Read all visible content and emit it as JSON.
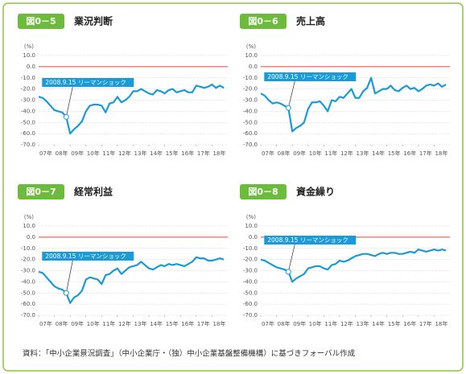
{
  "chart_data": [
    {
      "type": "line",
      "figure_label": "図0－5",
      "title": "業況判断",
      "y_unit": "(%)",
      "annotation": "2008.9.15 リーマンショック",
      "x": [
        2007,
        2007.25,
        2007.5,
        2007.75,
        2008,
        2008.25,
        2008.5,
        2008.75,
        2009,
        2009.25,
        2009.5,
        2009.75,
        2010,
        2010.25,
        2010.5,
        2010.75,
        2011,
        2011.25,
        2011.5,
        2011.75,
        2012,
        2012.25,
        2012.5,
        2012.75,
        2013,
        2013.25,
        2013.5,
        2013.75,
        2014,
        2014.25,
        2014.5,
        2014.75,
        2015,
        2015.25,
        2015.5,
        2015.75,
        2016,
        2016.25,
        2016.5,
        2016.75,
        2017,
        2017.25,
        2017.5,
        2017.75,
        2018,
        2018.25,
        2018.5,
        2018.75
      ],
      "xlim": [
        2007,
        2019
      ],
      "xticks": [
        {
          "value": 2007,
          "label": "07年"
        },
        {
          "value": 2008,
          "label": "08年"
        },
        {
          "value": 2009,
          "label": "09年"
        },
        {
          "value": 2010,
          "label": "10年"
        },
        {
          "value": 2011,
          "label": "11年"
        },
        {
          "value": 2012,
          "label": "12年"
        },
        {
          "value": 2013,
          "label": "13年"
        },
        {
          "value": 2014,
          "label": "14年"
        },
        {
          "value": 2015,
          "label": "15年"
        },
        {
          "value": 2016,
          "label": "16年"
        },
        {
          "value": 2017,
          "label": "17年"
        },
        {
          "value": 2018,
          "label": "18年"
        }
      ],
      "ylim": [
        -70,
        10
      ],
      "yticks": [
        {
          "value": 10,
          "label": "10.0"
        },
        {
          "value": 0,
          "label": "0.0"
        },
        {
          "value": -10,
          "label": "-10.0"
        },
        {
          "value": -20,
          "label": "-20.0"
        },
        {
          "value": -30,
          "label": "-30.0"
        },
        {
          "value": -40,
          "label": "-40.0"
        },
        {
          "value": -50,
          "label": "-50.0"
        },
        {
          "value": -60,
          "label": "-60.0"
        },
        {
          "value": -70,
          "label": "-70.0"
        }
      ],
      "grid": true,
      "reference_line": {
        "value": 0,
        "color": "#e8473d"
      },
      "series": [
        {
          "color": "#1a9ad6",
          "values": [
            -27,
            -28,
            -31,
            -35,
            -39,
            -40,
            -41,
            -45,
            -60,
            -56,
            -53,
            -49,
            -40,
            -35,
            -34,
            -34,
            -35,
            -41,
            -33,
            -32,
            -27,
            -32,
            -30,
            -27,
            -22,
            -22,
            -20,
            -22,
            -24,
            -25,
            -21,
            -22,
            -24,
            -21,
            -20,
            -23,
            -22,
            -21,
            -23,
            -23,
            -17,
            -18,
            -19,
            -18,
            -16,
            -19,
            -17,
            -19
          ]
        }
      ]
    },
    {
      "type": "line",
      "figure_label": "図0－6",
      "title": "売上高",
      "y_unit": "(%)",
      "annotation": "2008.9.15 リーマンショック",
      "x": [
        2007,
        2007.25,
        2007.5,
        2007.75,
        2008,
        2008.25,
        2008.5,
        2008.75,
        2009,
        2009.25,
        2009.5,
        2009.75,
        2010,
        2010.25,
        2010.5,
        2010.75,
        2011,
        2011.25,
        2011.5,
        2011.75,
        2012,
        2012.25,
        2012.5,
        2012.75,
        2013,
        2013.25,
        2013.5,
        2013.75,
        2014,
        2014.25,
        2014.5,
        2014.75,
        2015,
        2015.25,
        2015.5,
        2015.75,
        2016,
        2016.25,
        2016.5,
        2016.75,
        2017,
        2017.25,
        2017.5,
        2017.75,
        2018,
        2018.25,
        2018.5,
        2018.75
      ],
      "xlim": [
        2007,
        2019
      ],
      "xticks": [
        {
          "value": 2007,
          "label": "07年"
        },
        {
          "value": 2008,
          "label": "08年"
        },
        {
          "value": 2009,
          "label": "09年"
        },
        {
          "value": 2010,
          "label": "10年"
        },
        {
          "value": 2011,
          "label": "11年"
        },
        {
          "value": 2012,
          "label": "12年"
        },
        {
          "value": 2013,
          "label": "13年"
        },
        {
          "value": 2014,
          "label": "14年"
        },
        {
          "value": 2015,
          "label": "15年"
        },
        {
          "value": 2016,
          "label": "16年"
        },
        {
          "value": 2017,
          "label": "17年"
        },
        {
          "value": 2018,
          "label": "18年"
        }
      ],
      "ylim": [
        -70,
        10
      ],
      "yticks": [
        {
          "value": 10,
          "label": "10.0"
        },
        {
          "value": 0,
          "label": "0.0"
        },
        {
          "value": -10,
          "label": "-10.0"
        },
        {
          "value": -20,
          "label": "-20.0"
        },
        {
          "value": -30,
          "label": "-30.0"
        },
        {
          "value": -40,
          "label": "-40.0"
        },
        {
          "value": -50,
          "label": "-50.0"
        },
        {
          "value": -60,
          "label": "-60.0"
        },
        {
          "value": -70,
          "label": "-70.0"
        }
      ],
      "grid": true,
      "reference_line": {
        "value": 0,
        "color": "#e8473d"
      },
      "series": [
        {
          "color": "#1a9ad6",
          "values": [
            -24,
            -26,
            -30,
            -33,
            -32,
            -33,
            -35,
            -37,
            -58,
            -55,
            -53,
            -50,
            -38,
            -32,
            -32,
            -31,
            -35,
            -40,
            -30,
            -31,
            -27,
            -28,
            -24,
            -20,
            -28,
            -28,
            -22,
            -19,
            -10,
            -24,
            -22,
            -20,
            -20,
            -17,
            -21,
            -22,
            -19,
            -17,
            -20,
            -19,
            -22,
            -20,
            -17,
            -16,
            -17,
            -15,
            -18,
            -16
          ]
        }
      ]
    },
    {
      "type": "line",
      "figure_label": "図0－7",
      "title": "経常利益",
      "y_unit": "(%)",
      "annotation": "2008.9.15 リーマンショック",
      "x": [
        2007,
        2007.25,
        2007.5,
        2007.75,
        2008,
        2008.25,
        2008.5,
        2008.75,
        2009,
        2009.25,
        2009.5,
        2009.75,
        2010,
        2010.25,
        2010.5,
        2010.75,
        2011,
        2011.25,
        2011.5,
        2011.75,
        2012,
        2012.25,
        2012.5,
        2012.75,
        2013,
        2013.25,
        2013.5,
        2013.75,
        2014,
        2014.25,
        2014.5,
        2014.75,
        2015,
        2015.25,
        2015.5,
        2015.75,
        2016,
        2016.25,
        2016.5,
        2016.75,
        2017,
        2017.25,
        2017.5,
        2017.75,
        2018,
        2018.25,
        2018.5,
        2018.75
      ],
      "xlim": [
        2007,
        2019
      ],
      "xticks": [
        {
          "value": 2007,
          "label": "07年"
        },
        {
          "value": 2008,
          "label": "08年"
        },
        {
          "value": 2009,
          "label": "09年"
        },
        {
          "value": 2010,
          "label": "10年"
        },
        {
          "value": 2011,
          "label": "11年"
        },
        {
          "value": 2012,
          "label": "12年"
        },
        {
          "value": 2013,
          "label": "13年"
        },
        {
          "value": 2014,
          "label": "14年"
        },
        {
          "value": 2015,
          "label": "15年"
        },
        {
          "value": 2016,
          "label": "16年"
        },
        {
          "value": 2017,
          "label": "17年"
        },
        {
          "value": 2018,
          "label": "18年"
        }
      ],
      "ylim": [
        -70,
        10
      ],
      "yticks": [
        {
          "value": 10,
          "label": "10.0"
        },
        {
          "value": 0,
          "label": "0.0"
        },
        {
          "value": -10,
          "label": "-10.0"
        },
        {
          "value": -20,
          "label": "-20.0"
        },
        {
          "value": -30,
          "label": "-30.0"
        },
        {
          "value": -40,
          "label": "-40.0"
        },
        {
          "value": -50,
          "label": "-50.0"
        },
        {
          "value": -60,
          "label": "-60.0"
        },
        {
          "value": -70,
          "label": "-70.0"
        }
      ],
      "grid": true,
      "reference_line": {
        "value": 0,
        "color": "#e8473d"
      },
      "series": [
        {
          "color": "#1a9ad6",
          "values": [
            -31,
            -32,
            -36,
            -40,
            -44,
            -46,
            -47,
            -50,
            -59,
            -54,
            -52,
            -48,
            -38,
            -36,
            -37,
            -38,
            -42,
            -34,
            -33,
            -30,
            -28,
            -33,
            -30,
            -27,
            -26,
            -25,
            -22,
            -25,
            -28,
            -29,
            -27,
            -25,
            -26,
            -24,
            -25,
            -24,
            -25,
            -26,
            -24,
            -22,
            -18,
            -19,
            -19,
            -21,
            -21,
            -20,
            -19,
            -20
          ]
        }
      ]
    },
    {
      "type": "line",
      "figure_label": "図0－8",
      "title": "資金繰り",
      "y_unit": "(%)",
      "annotation": "2008.9.15 リーマンショック",
      "x": [
        2007,
        2007.25,
        2007.5,
        2007.75,
        2008,
        2008.25,
        2008.5,
        2008.75,
        2009,
        2009.25,
        2009.5,
        2009.75,
        2010,
        2010.25,
        2010.5,
        2010.75,
        2011,
        2011.25,
        2011.5,
        2011.75,
        2012,
        2012.25,
        2012.5,
        2012.75,
        2013,
        2013.25,
        2013.5,
        2013.75,
        2014,
        2014.25,
        2014.5,
        2014.75,
        2015,
        2015.25,
        2015.5,
        2015.75,
        2016,
        2016.25,
        2016.5,
        2016.75,
        2017,
        2017.25,
        2017.5,
        2017.75,
        2018,
        2018.25,
        2018.5,
        2018.75
      ],
      "xlim": [
        2007,
        2019
      ],
      "xticks": [
        {
          "value": 2007,
          "label": "07年"
        },
        {
          "value": 2008,
          "label": "08年"
        },
        {
          "value": 2009,
          "label": "09年"
        },
        {
          "value": 2010,
          "label": "10年"
        },
        {
          "value": 2011,
          "label": "11年"
        },
        {
          "value": 2012,
          "label": "12年"
        },
        {
          "value": 2013,
          "label": "13年"
        },
        {
          "value": 2014,
          "label": "14年"
        },
        {
          "value": 2015,
          "label": "15年"
        },
        {
          "value": 2016,
          "label": "16年"
        },
        {
          "value": 2017,
          "label": "17年"
        },
        {
          "value": 2018,
          "label": "18年"
        }
      ],
      "ylim": [
        -70,
        10
      ],
      "yticks": [
        {
          "value": 10,
          "label": "10.0"
        },
        {
          "value": 0,
          "label": "0.0"
        },
        {
          "value": -10,
          "label": "-10.0"
        },
        {
          "value": -20,
          "label": "-20.0"
        },
        {
          "value": -30,
          "label": "-30.0"
        },
        {
          "value": -40,
          "label": "-40.0"
        },
        {
          "value": -50,
          "label": "-50.0"
        },
        {
          "value": -60,
          "label": "-60.0"
        },
        {
          "value": -70,
          "label": "-70.0"
        }
      ],
      "grid": true,
      "reference_line": {
        "value": 0,
        "color": "#e8473d"
      },
      "series": [
        {
          "color": "#1a9ad6",
          "values": [
            -20,
            -21,
            -23,
            -25,
            -27,
            -28,
            -29,
            -31,
            -40,
            -37,
            -35,
            -33,
            -28,
            -27,
            -26,
            -26,
            -28,
            -29,
            -25,
            -24,
            -21,
            -22,
            -21,
            -19,
            -17,
            -16,
            -15,
            -15,
            -16,
            -17,
            -15,
            -14,
            -15,
            -14,
            -14,
            -15,
            -15,
            -14,
            -13,
            -14,
            -11,
            -12,
            -13,
            -12,
            -11,
            -12,
            -11,
            -12
          ]
        }
      ]
    }
  ],
  "source": "資料：「中小企業景況調査」（中小企業庁・（独）中小企業基盤整備機構）に基づきフォーバル作成"
}
